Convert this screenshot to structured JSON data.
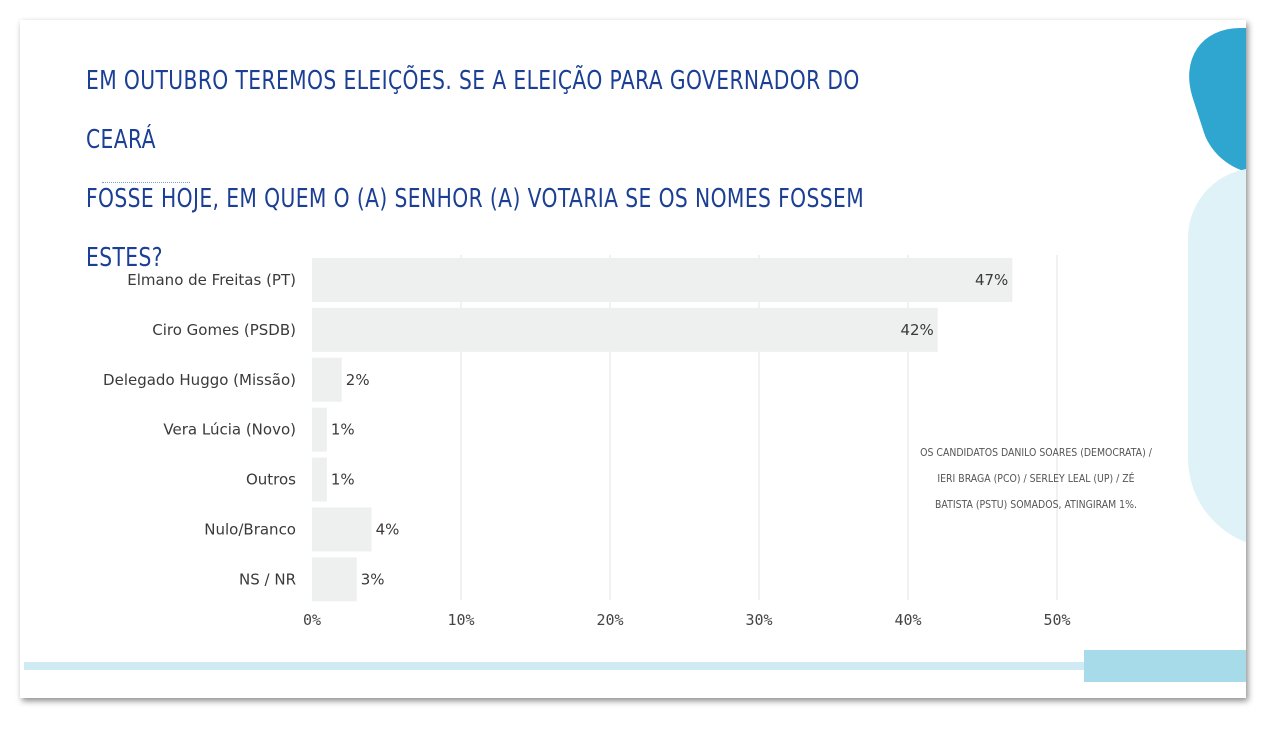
{
  "slide": {
    "title_line1": "EM OUTUBRO TEREMOS ELEIÇÕES. SE A ELEIÇÃO PARA GOVERNADOR DO CEARÁ",
    "title_line2": "FOSSE HOJE, EM QUEM O (A) SENHOR (A) VOTARIA SE OS NOMES FOSSEM ESTES?",
    "note_line1": "OS CANDIDATOS DANILO SOARES (DEMOCRATA) /",
    "note_line2": "IERI BRAGA (PCO) / SERLEY LEAL (UP) / ZÉ",
    "note_line3": "BATISTA (PSTU) SOMADOS, ATINGIRAM 1%."
  },
  "colors": {
    "title": "#1b3f94",
    "bar": "#eef0f0",
    "grid": "#e3e3e3",
    "accent_blue": "#2fa6cf",
    "accent_light": "#dff2f8"
  },
  "chart_data": {
    "type": "bar",
    "orientation": "horizontal",
    "categories": [
      "Elmano de Freitas (PT)",
      "Ciro Gomes (PSDB)",
      "Delegado Huggo (Missão)",
      "Vera Lúcia (Novo)",
      "Outros",
      "Nulo/Branco",
      "NS / NR"
    ],
    "values": [
      47,
      42,
      2,
      1,
      1,
      4,
      3
    ],
    "value_labels": [
      "47%",
      "42%",
      "2%",
      "1%",
      "1%",
      "4%",
      "3%"
    ],
    "xlim": [
      0,
      50
    ],
    "xticks": [
      0,
      10,
      20,
      30,
      40,
      50
    ],
    "xtick_labels": [
      "0%",
      "10%",
      "20%",
      "30%",
      "40%",
      "50%"
    ],
    "grid": true,
    "legend": "none"
  }
}
